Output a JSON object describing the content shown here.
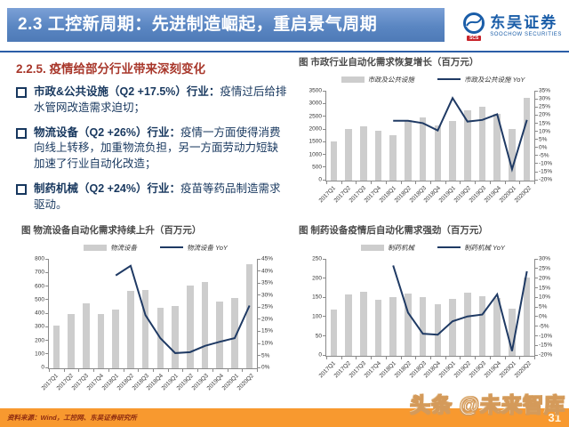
{
  "header": {
    "title": "2.3 工控新周期：先进制造崛起，重启景气周期",
    "logo": {
      "name": "东吴证券",
      "sub": "SOOCHOW SECURITIES",
      "badge": "SCS"
    }
  },
  "section": {
    "heading": "2.2.5. 疫情给部分行业带来深刻变化",
    "bullets": [
      {
        "lead": "市政&公共设施（Q2 +17.5%）行业：",
        "text": "疫情过后给排水管网改造需求迫切；"
      },
      {
        "lead": "物流设备（Q2 +26%）行业：",
        "text": "疫情一方面使得消费向线上转移，加重物流负担，另一方面劳动力短缺加速了行业自动化改造；"
      },
      {
        "lead": "制药机械（Q2 +24%）行业：",
        "text": "疫苗等药品制造需求驱动。"
      }
    ]
  },
  "footer": {
    "source": "资料来源：Wind，工控网、东吴证券研究所",
    "page": "31",
    "watermark": "头条 @未来智库"
  },
  "colors": {
    "header_blue": "#5A86C2",
    "heading_red": "#A8372B",
    "body_navy": "#17375E",
    "footer_orange": "#F8992F",
    "bar_gray": "#CDCDCD",
    "line_navy": "#1F3A64"
  },
  "chart_data": [
    {
      "type": "bar",
      "title": "图 市政行业自动化需求恢复增长（百万元）",
      "categories": [
        "2017Q1",
        "2017Q2",
        "2017Q3",
        "2017Q4",
        "2018Q1",
        "2018Q2",
        "2018Q3",
        "2018Q4",
        "2019Q1",
        "2019Q2",
        "2019Q3",
        "2019Q4",
        "2020Q1",
        "2020Q2"
      ],
      "series": [
        {
          "name": "市政及公共设施",
          "kind": "bar",
          "axis": "left",
          "values": [
            1520,
            2030,
            2130,
            1950,
            1780,
            2370,
            2460,
            2150,
            2330,
            2760,
            2890,
            2600,
            2030,
            3240
          ]
        },
        {
          "name": "市政及公共设施 YoY",
          "kind": "line",
          "axis": "right",
          "values": [
            null,
            null,
            null,
            null,
            17,
            17,
            15.5,
            11,
            31,
            16.5,
            17.5,
            21,
            -13,
            17.5
          ]
        }
      ],
      "left_axis": {
        "min": 0,
        "max": 3500,
        "step": 500
      },
      "right_axis": {
        "min": -20,
        "max": 35,
        "step": 5,
        "suffix": "%"
      },
      "grid": false,
      "legend_position": "top",
      "colors": {
        "bar": "#CDCDCD",
        "line": "#1F3A64"
      }
    },
    {
      "type": "bar",
      "title": "图 物流设备自动化需求持续上升（百万元）",
      "categories": [
        "2017Q1",
        "2017Q2",
        "2017Q3",
        "2017Q4",
        "2018Q1",
        "2018Q2",
        "2018Q3",
        "2018Q4",
        "2019Q1",
        "2019Q2",
        "2019Q3",
        "2019Q4",
        "2020Q1",
        "2020Q2"
      ],
      "series": [
        {
          "name": "物流设备",
          "kind": "bar",
          "axis": "left",
          "values": [
            310,
            400,
            475,
            395,
            430,
            570,
            578,
            445,
            458,
            608,
            632,
            492,
            515,
            765
          ]
        },
        {
          "name": "物流设备 YoY",
          "kind": "line",
          "axis": "right",
          "values": [
            null,
            null,
            null,
            null,
            38.5,
            42.5,
            22,
            12.5,
            6.3,
            6.7,
            9.3,
            11,
            12.5,
            26
          ]
        }
      ],
      "left_axis": {
        "min": 0,
        "max": 800,
        "step": 100
      },
      "right_axis": {
        "min": 0,
        "max": 45,
        "step": 5,
        "suffix": "%"
      },
      "grid": false,
      "legend_position": "top",
      "colors": {
        "bar": "#CDCDCD",
        "line": "#1F3A64"
      }
    },
    {
      "type": "bar",
      "title": "图 制药设备疫情后自动化需求强劲（百万元）",
      "categories": [
        "2017Q1",
        "2017Q2",
        "2017Q3",
        "2017Q4",
        "2018Q1",
        "2018Q2",
        "2018Q3",
        "2018Q4",
        "2019Q1",
        "2019Q2",
        "2019Q3",
        "2019Q4",
        "2020Q1",
        "2020Q2"
      ],
      "series": [
        {
          "name": "制药机械",
          "kind": "bar",
          "axis": "left",
          "values": [
            119,
            158,
            167,
            146,
            151,
            162,
            153,
            133,
            148,
            163,
            155,
            149,
            122,
            202
          ]
        },
        {
          "name": "制药机械 YoY",
          "kind": "line",
          "axis": "right",
          "values": [
            null,
            null,
            null,
            null,
            27,
            2.5,
            -8.5,
            -9,
            -2,
            0.5,
            1.5,
            12,
            -17.5,
            24
          ]
        }
      ],
      "left_axis": {
        "min": 0,
        "max": 250,
        "step": 50
      },
      "right_axis": {
        "min": -20,
        "max": 30,
        "step": 5,
        "suffix": "%"
      },
      "grid": false,
      "legend_position": "top",
      "colors": {
        "bar": "#CDCDCD",
        "line": "#1F3A64"
      }
    }
  ]
}
